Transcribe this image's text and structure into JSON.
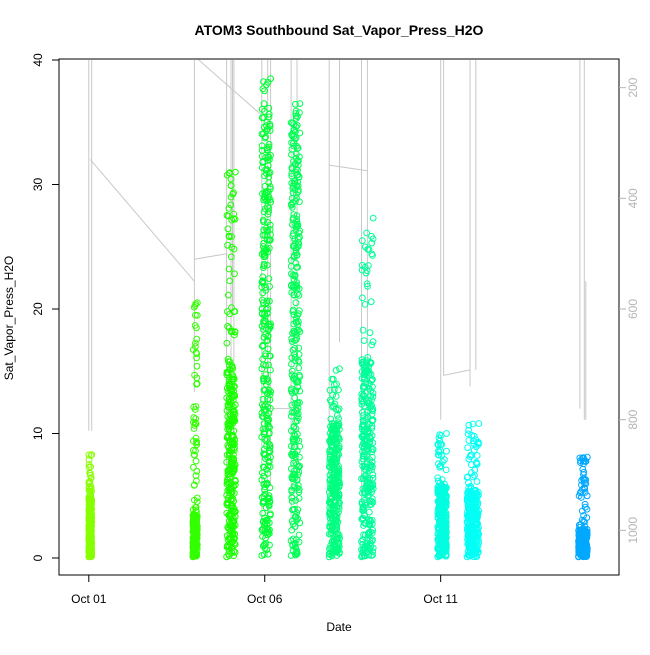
{
  "chart_data": {
    "type": "scatter",
    "title": "ATOM3 Southbound Sat_Vapor_Press_H2O",
    "xlabel": "Date",
    "ylabel": "Sat_Vapor_Press_H2O",
    "xlim": [
      "2016-09-30T18:00",
      "2016-10-15T12:00"
    ],
    "ylim": [
      0,
      40
    ],
    "x_ticks": [
      {
        "date": "2016-10-01",
        "label": "Oct 01"
      },
      {
        "date": "2016-10-06",
        "label": "Oct 06"
      },
      {
        "date": "2016-10-11",
        "label": "Oct 11"
      }
    ],
    "y_ticks": [
      0,
      10,
      20,
      30,
      40
    ],
    "y2_axis": {
      "note": "secondary axis (pressure), reversed",
      "ylim": [
        1050,
        150
      ],
      "ticks": [
        200,
        400,
        600,
        800,
        1000
      ],
      "color": "#b5b5b5"
    },
    "marker": "open-circle",
    "color_note": "point color varies with time (lime green to blue)",
    "series": [
      {
        "start": "2016-10-01T00:00",
        "end": "2016-10-01T02:00",
        "ymin": 0.1,
        "ymax": 8.3,
        "dense_top": 4.8,
        "color": "#88ff00"
      },
      {
        "start": "2016-10-03T23:00",
        "end": "2016-10-04T02:00",
        "ymin": 0.1,
        "ymax": 20.5,
        "dense_top": 3.4,
        "color": "#33ff00"
      },
      {
        "start": "2016-10-04T22:00",
        "end": "2016-10-05T04:00",
        "ymin": 0.1,
        "ymax": 31.0,
        "dense_top": 16.0,
        "color": "#1aff00"
      },
      {
        "start": "2016-10-05T22:00",
        "end": "2016-10-06T04:00",
        "ymin": 0.2,
        "ymax": 38.5,
        "dense_top": 35.5,
        "color": "#00ff33"
      },
      {
        "start": "2016-10-06T18:00",
        "end": "2016-10-07T00:00",
        "ymin": 0.2,
        "ymax": 36.5,
        "dense_top": 35.8,
        "color": "#00ff55"
      },
      {
        "start": "2016-10-07T20:00",
        "end": "2016-10-08T03:00",
        "ymin": 0.1,
        "ymax": 15.2,
        "dense_top": 11.0,
        "color": "#00ff80"
      },
      {
        "start": "2016-10-08T18:00",
        "end": "2016-10-09T02:00",
        "ymin": 0.1,
        "ymax": 27.3,
        "dense_top": 16.0,
        "color": "#00ff99"
      },
      {
        "start": "2016-10-10T22:00",
        "end": "2016-10-11T04:00",
        "ymin": 0.1,
        "ymax": 10.0,
        "dense_top": 5.8,
        "color": "#00ffe0"
      },
      {
        "start": "2016-10-11T18:00",
        "end": "2016-10-12T02:00",
        "ymin": 0.1,
        "ymax": 10.8,
        "dense_top": 5.5,
        "color": "#00fff5"
      },
      {
        "start": "2016-10-14T22:00",
        "end": "2016-10-15T04:00",
        "ymin": 0.1,
        "ymax": 8.1,
        "dense_top": 2.3,
        "color": "#00a8ff"
      }
    ],
    "pressure_trace": {
      "color": "#c8c8c8",
      "segments": [
        [
          [
            "2016-10-01T00:00",
            150
          ],
          [
            "2016-10-01T00:00",
            820
          ]
        ],
        [
          [
            "2016-10-01T02:00",
            820
          ],
          [
            "2016-10-01T02:00",
            150
          ]
        ],
        [
          [
            "2016-10-01T01:00",
            330
          ],
          [
            "2016-10-04T00:00",
            550
          ]
        ],
        [
          [
            "2016-10-04T00:00",
            150
          ],
          [
            "2016-10-04T00:00",
            750
          ]
        ],
        [
          [
            "2016-10-04T00:00",
            510
          ],
          [
            "2016-10-04T22:00",
            500
          ]
        ],
        [
          [
            "2016-10-04T22:00",
            150
          ],
          [
            "2016-10-04T22:00",
            950
          ]
        ],
        [
          [
            "2016-10-05T01:00",
            150
          ],
          [
            "2016-10-05T01:00",
            980
          ]
        ],
        [
          [
            "2016-10-05T02:00",
            150
          ],
          [
            "2016-10-05T02:00",
            600
          ]
        ],
        [
          [
            "2016-10-05T03:00",
            150
          ],
          [
            "2016-10-05T03:00",
            950
          ]
        ],
        [
          [
            "2016-10-04T03:00",
            150
          ],
          [
            "2016-10-05T22:00",
            250
          ]
        ],
        [
          [
            "2016-10-05T22:00",
            150
          ],
          [
            "2016-10-05T22:00",
            1000
          ]
        ],
        [
          [
            "2016-10-06T02:00",
            150
          ],
          [
            "2016-10-06T02:00",
            1000
          ]
        ],
        [
          [
            "2016-10-06T04:00",
            150
          ],
          [
            "2016-10-06T04:00",
            920
          ]
        ],
        [
          [
            "2016-10-06T04:00",
            780
          ],
          [
            "2016-10-06T18:00",
            780
          ]
        ],
        [
          [
            "2016-10-06T18:00",
            150
          ],
          [
            "2016-10-06T18:00",
            1000
          ]
        ],
        [
          [
            "2016-10-06T22:00",
            150
          ],
          [
            "2016-10-06T22:00",
            1000
          ]
        ],
        [
          [
            "2016-10-07T20:00",
            150
          ],
          [
            "2016-10-07T20:00",
            900
          ]
        ],
        [
          [
            "2016-10-07T20:00",
            340
          ],
          [
            "2016-10-08T22:00",
            350
          ]
        ],
        [
          [
            "2016-10-08T03:00",
            150
          ],
          [
            "2016-10-08T03:00",
            660
          ]
        ],
        [
          [
            "2016-10-08T18:00",
            150
          ],
          [
            "2016-10-08T18:00",
            950
          ]
        ],
        [
          [
            "2016-10-08T22:00",
            150
          ],
          [
            "2016-10-08T22:00",
            950
          ]
        ],
        [
          [
            "2016-10-11T00:00",
            150
          ],
          [
            "2016-10-11T00:00",
            800
          ]
        ],
        [
          [
            "2016-10-11T02:00",
            150
          ],
          [
            "2016-10-11T02:00",
            720
          ]
        ],
        [
          [
            "2016-10-11T02:00",
            720
          ],
          [
            "2016-10-11T20:00",
            710
          ]
        ],
        [
          [
            "2016-10-11T20:00",
            150
          ],
          [
            "2016-10-11T20:00",
            740
          ]
        ],
        [
          [
            "2016-10-12T00:00",
            150
          ],
          [
            "2016-10-12T00:00",
            710
          ]
        ],
        [
          [
            "2016-10-14T23:00",
            150
          ],
          [
            "2016-10-14T23:00",
            780
          ]
        ],
        [
          [
            "2016-10-15T02:00",
            150
          ],
          [
            "2016-10-15T02:00",
            800
          ]
        ],
        [
          [
            "2016-10-15T03:00",
            550
          ],
          [
            "2016-10-15T03:00",
            800
          ]
        ]
      ]
    }
  }
}
